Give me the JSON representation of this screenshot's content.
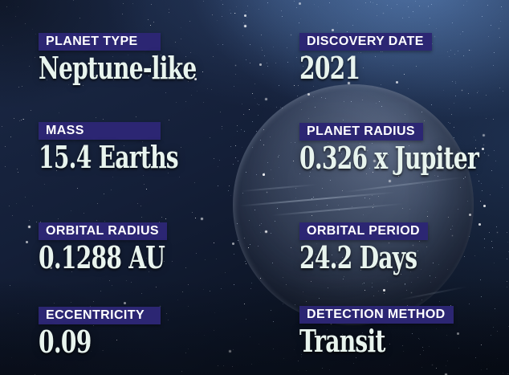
{
  "theme": {
    "badge_bg": "#2c2673",
    "label_color": "#ffffff",
    "value_color": "#e8f4ee",
    "sky_dark": "#0c1424",
    "sky_glow": "#3a5a8e",
    "planet_color": "#68768c"
  },
  "fields": [
    {
      "label": "PLANET TYPE",
      "value": "Neptune-like"
    },
    {
      "label": "DISCOVERY DATE",
      "value": "2021"
    },
    {
      "label": "MASS",
      "value": "15.4 Earths"
    },
    {
      "label": "PLANET RADIUS",
      "value": "0.326 x Jupiter"
    },
    {
      "label": "ORBITAL RADIUS",
      "value": "0.1288 AU"
    },
    {
      "label": "ORBITAL PERIOD",
      "value": "24.2 Days"
    },
    {
      "label": "ECCENTRICITY",
      "value": "0.09"
    },
    {
      "label": "DETECTION METHOD",
      "value": "Transit"
    }
  ]
}
